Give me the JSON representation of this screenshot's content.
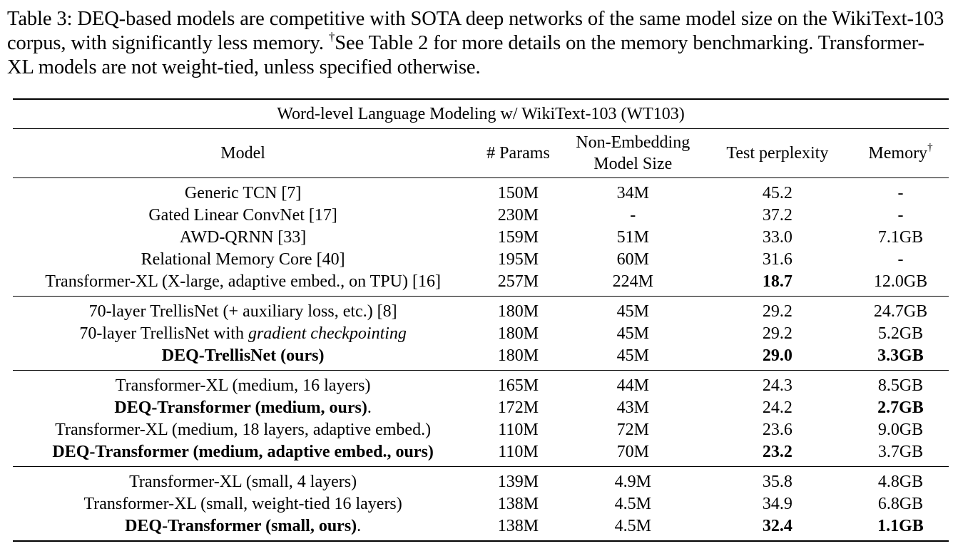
{
  "caption": {
    "prefix": "Table 3: DEQ-based models are competitive with SOTA deep networks of the same model size on the WikiText-103 corpus, with significantly less memory.",
    "dagger": "†",
    "suffix": "See Table 2 for more details on the memory benchmarking. Transformer-XL models are not weight-tied, unless specified otherwise."
  },
  "table": {
    "title": "Word-level Language Modeling w/ WikiText-103 (WT103)",
    "headers": {
      "model": "Model",
      "params": "# Params",
      "size_line1": "Non-Embedding",
      "size_line2": "Model Size",
      "ppl": "Test perplexity",
      "memory": "Memory",
      "memory_mark": "†"
    },
    "groups": [
      [
        {
          "model": "Generic TCN [7]",
          "params": "150M",
          "size": "34M",
          "ppl": "45.2",
          "memory": "-"
        },
        {
          "model": "Gated Linear ConvNet [17]",
          "params": "230M",
          "size": "-",
          "ppl": "37.2",
          "memory": "-"
        },
        {
          "model": "AWD-QRNN [33]",
          "params": "159M",
          "size": "51M",
          "ppl": "33.0",
          "memory": "7.1GB"
        },
        {
          "model": "Relational Memory Core [40]",
          "params": "195M",
          "size": "60M",
          "ppl": "31.6",
          "memory": "-"
        },
        {
          "model": "Transformer-XL (X-large, adaptive embed., on TPU) [16]",
          "params": "257M",
          "size": "224M",
          "ppl": "18.7",
          "memory": "12.0GB"
        }
      ],
      [
        {
          "model": "70-layer TrellisNet (+ auxiliary loss, etc.) [8]",
          "params": "180M",
          "size": "45M",
          "ppl": "29.2",
          "memory": "24.7GB"
        },
        {
          "model_prefix": "70-layer TrellisNet with ",
          "model_italic": "gradient checkpointing",
          "params": "180M",
          "size": "45M",
          "ppl": "29.2",
          "memory": "5.2GB"
        },
        {
          "model": "DEQ-TrellisNet (ours)",
          "params": "180M",
          "size": "45M",
          "ppl": "29.0",
          "memory": "3.3GB"
        }
      ],
      [
        {
          "model": "Transformer-XL (medium, 16 layers)",
          "params": "165M",
          "size": "44M",
          "ppl": "24.3",
          "memory": "8.5GB"
        },
        {
          "model": "DEQ-Transformer (medium, ours)",
          "model_tail": ".",
          "params": "172M",
          "size": "43M",
          "ppl": "24.2",
          "memory": "2.7GB"
        },
        {
          "model": "Transformer-XL (medium, 18 layers, adaptive embed.)",
          "params": "110M",
          "size": "72M",
          "ppl": "23.6",
          "memory": "9.0GB"
        },
        {
          "model": "DEQ-Transformer (medium, adaptive embed., ours)",
          "params": "110M",
          "size": "70M",
          "ppl": "23.2",
          "memory": "3.7GB"
        }
      ],
      [
        {
          "model": "Transformer-XL (small, 4 layers)",
          "params": "139M",
          "size": "4.9M",
          "ppl": "35.8",
          "memory": "4.8GB"
        },
        {
          "model": "Transformer-XL (small, weight-tied 16 layers)",
          "params": "138M",
          "size": "4.5M",
          "ppl": "34.9",
          "memory": "6.8GB"
        },
        {
          "model": "DEQ-Transformer (small, ours)",
          "model_tail": ".",
          "params": "138M",
          "size": "4.5M",
          "ppl": "32.4",
          "memory": "1.1GB"
        }
      ]
    ]
  }
}
